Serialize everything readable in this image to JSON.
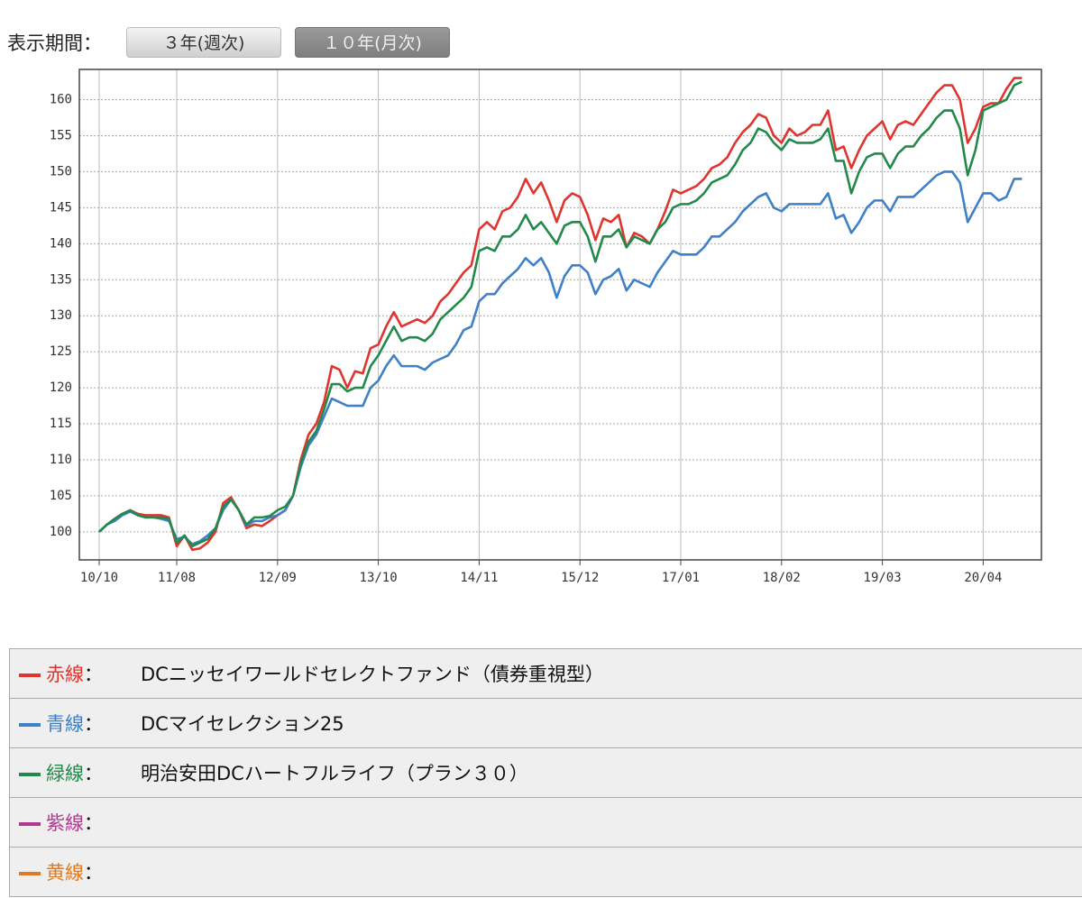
{
  "controls": {
    "label": "表示期間：",
    "buttons": [
      "３年(週次)",
      "１０年(月次)"
    ]
  },
  "chart_data": {
    "type": "line",
    "categories": [
      "10/10",
      null,
      null,
      null,
      null,
      null,
      null,
      null,
      null,
      null,
      "11/08",
      null,
      null,
      null,
      null,
      null,
      null,
      null,
      null,
      null,
      null,
      null,
      null,
      "12/09",
      null,
      null,
      null,
      null,
      null,
      null,
      null,
      null,
      null,
      null,
      null,
      null,
      "13/10",
      null,
      null,
      null,
      null,
      null,
      null,
      null,
      null,
      null,
      null,
      null,
      null,
      "14/11",
      null,
      null,
      null,
      null,
      null,
      null,
      null,
      null,
      null,
      null,
      null,
      null,
      "15/12",
      null,
      null,
      null,
      null,
      null,
      null,
      null,
      null,
      null,
      null,
      null,
      null,
      "17/01",
      null,
      null,
      null,
      null,
      null,
      null,
      null,
      null,
      null,
      null,
      null,
      null,
      "18/02",
      null,
      null,
      null,
      null,
      null,
      null,
      null,
      null,
      null,
      null,
      null,
      null,
      "19/03",
      null,
      null,
      null,
      null,
      null,
      null,
      null,
      null,
      null,
      null,
      null,
      null,
      "20/04",
      null,
      null,
      null,
      null,
      null
    ],
    "series": [
      {
        "name": "DCニッセイワールドセレクトファンド（債券重視型）",
        "color": "#e0342e",
        "values": [
          100,
          101,
          101.8,
          102.5,
          103,
          102.5,
          102.3,
          102.3,
          102.3,
          102,
          98,
          99.5,
          97.5,
          97.7,
          98.5,
          100,
          104,
          104.8,
          103,
          100.5,
          101,
          100.8,
          101.5,
          102.3,
          103,
          105,
          110,
          113.5,
          115,
          118,
          123,
          122.5,
          120,
          122.3,
          122,
          125.5,
          126,
          128.5,
          130.5,
          128.5,
          129,
          129.5,
          129,
          130,
          132,
          133,
          134.5,
          136,
          137,
          142,
          143,
          142,
          144.5,
          145,
          146.5,
          149,
          147,
          148.5,
          146,
          143,
          146,
          147,
          146.5,
          144,
          140.5,
          143.5,
          143,
          144,
          139.5,
          141.5,
          141,
          140,
          142,
          144.5,
          147.5,
          147,
          147.5,
          148,
          149,
          150.5,
          151,
          152,
          154,
          155.5,
          156.5,
          158,
          157.5,
          155,
          154,
          156,
          155,
          155.5,
          156.5,
          156.5,
          158.5,
          153,
          153.5,
          150.5,
          153,
          155,
          156,
          157,
          154.5,
          156.5,
          157,
          156.5,
          158,
          159.5,
          161,
          162,
          162,
          160,
          154,
          156,
          159,
          159.5,
          159.5,
          161.5,
          163,
          163
        ]
      },
      {
        "name": "DCマイセレクション25",
        "color": "#3f80c6",
        "values": [
          100,
          101,
          101.5,
          102.3,
          102.8,
          102.3,
          102,
          102,
          101.8,
          101.5,
          99,
          99.3,
          98.3,
          98.7,
          99.5,
          100.5,
          103,
          104.5,
          103,
          100.8,
          101.5,
          101.5,
          102,
          102.3,
          103,
          105,
          109,
          112,
          113.5,
          116,
          118.5,
          118,
          117.5,
          117.5,
          117.5,
          120,
          121,
          123,
          124.5,
          123,
          123,
          123,
          122.5,
          123.5,
          124,
          124.5,
          126,
          128,
          128.5,
          132,
          133,
          133,
          134.5,
          135.5,
          136.5,
          138,
          137,
          138,
          136,
          132.5,
          135.5,
          137,
          137,
          136,
          133,
          135,
          135.5,
          136.5,
          133.5,
          135,
          134.5,
          134,
          136,
          137.5,
          139,
          138.5,
          138.5,
          138.5,
          139.5,
          141,
          141,
          142,
          143,
          144.5,
          145.5,
          146.5,
          147,
          145,
          144.5,
          145.5,
          145.5,
          145.5,
          145.5,
          145.5,
          147,
          143.5,
          144,
          141.5,
          143,
          145,
          146,
          146,
          144.5,
          146.5,
          146.5,
          146.5,
          147.5,
          148.5,
          149.5,
          150,
          150,
          148.5,
          143,
          145,
          147,
          147,
          146,
          146.5,
          149,
          149
        ]
      },
      {
        "name": "明治安田DCハートフルライフ（プラン３０）",
        "color": "#23894a",
        "values": [
          100,
          101,
          101.8,
          102.5,
          103,
          102.3,
          102,
          102,
          102,
          101.8,
          98.5,
          99.5,
          98,
          98.5,
          99,
          100.5,
          103.5,
          104.5,
          103,
          101,
          102,
          102,
          102.2,
          103,
          103.5,
          105,
          109.5,
          112.5,
          114,
          117,
          120.5,
          120.5,
          119.5,
          120,
          120,
          123,
          124.5,
          126.5,
          128.5,
          126.5,
          127,
          127,
          126.5,
          127.5,
          129.5,
          130.5,
          131.5,
          132.5,
          134,
          139,
          139.5,
          139,
          141,
          141,
          142,
          144,
          142,
          143,
          141.5,
          140,
          142.5,
          143,
          143,
          141,
          137.5,
          141,
          141,
          142,
          139.5,
          141,
          140.5,
          140,
          142,
          143,
          145,
          145.5,
          145.5,
          146,
          147,
          148.5,
          149,
          149.5,
          151,
          153,
          154,
          156,
          155.5,
          154,
          153,
          154.5,
          154,
          154,
          154,
          154.5,
          156,
          151.5,
          151.5,
          147,
          150,
          152,
          152.5,
          152.5,
          150.5,
          152.5,
          153.5,
          153.5,
          155,
          156,
          157.5,
          158.5,
          158.5,
          156,
          149.5,
          153,
          158.5,
          159,
          159.5,
          160,
          162,
          162.5
        ]
      }
    ],
    "ylim": [
      96.1,
      164.2
    ],
    "yticks": [
      100,
      105,
      110,
      115,
      120,
      125,
      130,
      135,
      140,
      145,
      150,
      155,
      160
    ],
    "grid": true
  },
  "legend": {
    "separator": "：",
    "rows": [
      {
        "label": "赤線",
        "color": "#e0342e"
      },
      {
        "label": "青線",
        "color": "#3f80c6"
      },
      {
        "label": "緑線",
        "color": "#23894a"
      },
      {
        "label": "紫線",
        "color": "#b0388f"
      },
      {
        "label": "黄線",
        "color": "#e07a22"
      }
    ]
  }
}
